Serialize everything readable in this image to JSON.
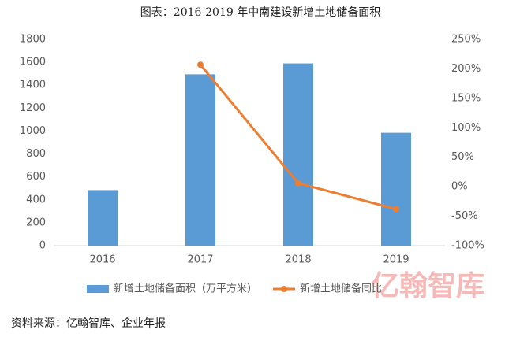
{
  "chart_data": {
    "type": "bar-line",
    "title": "图表：2016-2019 年中南建设新增土地储备面积",
    "categories": [
      "2016",
      "2017",
      "2018",
      "2019"
    ],
    "series": [
      {
        "name": "新增土地储备面积（万平方米）",
        "type": "bar",
        "color": "#5B9BD5",
        "values": [
          485,
          1495,
          1590,
          985
        ]
      },
      {
        "name": "新增土地储备同比",
        "type": "line",
        "axis": "y2",
        "color": "#ED7D31",
        "values": [
          null,
          207,
          6,
          -38
        ]
      }
    ],
    "ylim": [
      0,
      1800
    ],
    "yticks": [
      0,
      200,
      400,
      600,
      800,
      1000,
      1200,
      1400,
      1600,
      1800
    ],
    "y2lim": [
      -100,
      250
    ],
    "y2ticks": [
      {
        "value": -100,
        "label": "-100%"
      },
      {
        "value": -50,
        "label": "-50%"
      },
      {
        "value": 0,
        "label": "0%"
      },
      {
        "value": 50,
        "label": "50%"
      },
      {
        "value": 100,
        "label": "100%"
      },
      {
        "value": 150,
        "label": "150%"
      },
      {
        "value": 200,
        "label": "200%"
      },
      {
        "value": 250,
        "label": "250%"
      }
    ],
    "source": "资料来源：亿翰智库、企业年报",
    "watermark": "亿翰智库"
  }
}
